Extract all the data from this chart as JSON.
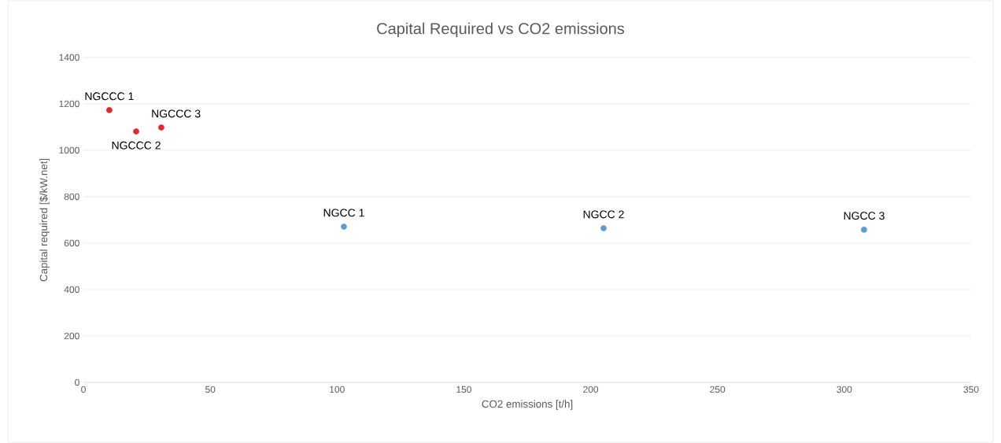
{
  "chart_data": {
    "type": "scatter",
    "title": "Capital Required vs CO2 emissions",
    "xlabel": "CO2 emissions [t/h]",
    "ylabel": "Capital required [$/kW.net]",
    "series": [
      {
        "color": "#e8242b",
        "x": [
          10.2,
          20.8,
          30.7
        ],
        "values": [
          1173,
          1081,
          1098
        ]
      },
      {
        "color": "#5b9bd5",
        "x": [
          102.7,
          205.1,
          307.8
        ],
        "values": [
          671,
          664,
          658
        ]
      }
    ],
    "annotations": [
      {
        "text": "NGCCC 1",
        "x": 10.2,
        "y": 1173
      },
      {
        "text": "NGCCC 2",
        "x": 20.8,
        "y": 1081
      },
      {
        "text": "NGCCC 3",
        "x": 30.7,
        "y": 1098
      },
      {
        "text": "NGCC 1",
        "x": 102.7,
        "y": 671
      },
      {
        "text": "NGCC 2",
        "x": 205.1,
        "y": 664
      },
      {
        "text": "NGCC 3",
        "x": 307.8,
        "y": 658
      }
    ],
    "xlim": [
      0,
      350
    ],
    "ylim": [
      0,
      1400
    ],
    "xticks": [
      0,
      50,
      100,
      150,
      200,
      250,
      300,
      350
    ],
    "yticks": [
      0,
      200,
      400,
      600,
      800,
      1000,
      1200,
      1400
    ],
    "grid": "y",
    "marker": "circle"
  }
}
